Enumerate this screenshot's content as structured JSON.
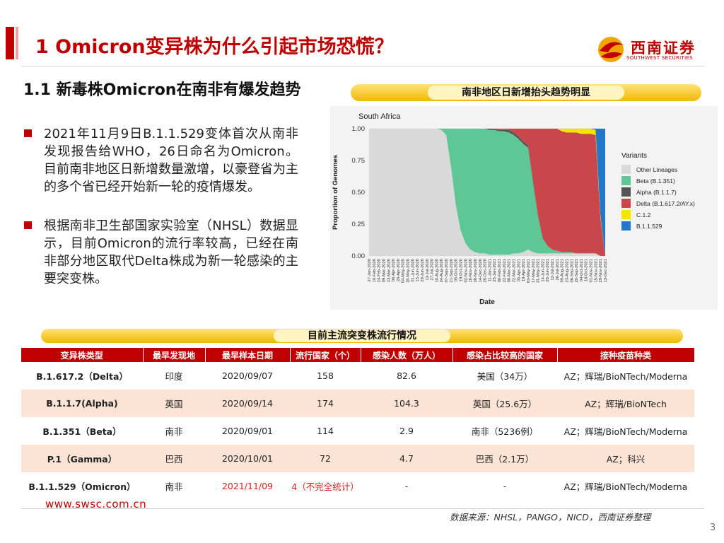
{
  "header": {
    "title": "1 Omicron变异株为什么引起市场恐慌？",
    "logo_name": "西南证券",
    "logo_sub": "SOUTHWEST SECURITIES"
  },
  "section": {
    "title": "1.1 新毒株Omicron在南非有爆发趋势",
    "bullets": [
      "2021年11月9日B.1.1.529变体首次从南非发现报告给WHO，26日命名为Omicron。目前南非地区日新增数量激增，以豪登省为主的多个省已经开始新一轮的疫情爆发。",
      "根据南非卫生部国家实验室（NHSL）数据显示，目前Omicron的流行率较高，已经在南非部分地区取代Delta株成为新一轮感染的主要突变株。"
    ]
  },
  "chart_banner": "南非地区日新增抬头趋势明显",
  "table_banner": "目前主流突变株流行情况",
  "chart_data": {
    "type": "area",
    "title": "South Africa",
    "xlabel": "Date",
    "ylabel": "Proportion of Genomes",
    "ylim": [
      0,
      1
    ],
    "yticks": [
      "0.00",
      "0.25",
      "0.50",
      "0.75",
      "1.00"
    ],
    "x": [
      "27-Jan-2020",
      "10-Feb-2020",
      "24-Feb-2020",
      "09-Mar-2020",
      "23-Mar-2020",
      "06-Apr-2020",
      "20-Apr-2020",
      "04-May-2020",
      "18-May-2020",
      "01-Jun-2020",
      "15-Jun-2020",
      "29-Jun-2020",
      "13-Jul-2020",
      "27-Jul-2020",
      "10-Aug-2020",
      "24-Aug-2020",
      "07-Sep-2020",
      "21-Sep-2020",
      "05-Oct-2020",
      "19-Oct-2020",
      "02-Nov-2020",
      "16-Nov-2020",
      "30-Nov-2020",
      "14-Dec-2020",
      "28-Dec-2020",
      "11-Jan-2021",
      "25-Jan-2021",
      "08-Feb-2021",
      "22-Feb-2021",
      "08-Mar-2021",
      "22-Mar-2021",
      "05-Apr-2021",
      "19-Apr-2021",
      "03-May-2021",
      "17-May-2021",
      "31-May-2021",
      "14-Jun-2021",
      "28-Jun-2021",
      "12-Jul-2021",
      "26-Jul-2021",
      "09-Aug-2021",
      "23-Aug-2021",
      "06-Sep-2021",
      "20-Sep-2021",
      "04-Oct-2021",
      "18-Oct-2021",
      "01-Nov-2021",
      "15-Nov-2021",
      "29-Nov-2021",
      "13-Dec-2021"
    ],
    "legend_title": "Variants",
    "legend_position": "right",
    "series": [
      {
        "name": "Other Lineages",
        "color": "#d9d9d9",
        "values": [
          1,
          1,
          1,
          1,
          1,
          1,
          1,
          1,
          1,
          1,
          1,
          1,
          1,
          1,
          1,
          0.99,
          0.95,
          0.7,
          0.4,
          0.2,
          0.1,
          0.05,
          0.03,
          0.02,
          0.02,
          0.01,
          0.01,
          0.01,
          0.01,
          0.01,
          0.02,
          0.02,
          0.03,
          0.05,
          0.03,
          0.02,
          0.02,
          0.02,
          0.02,
          0.02,
          0.02,
          0.02,
          0.02,
          0.02,
          0.02,
          0.02,
          0.02,
          0.02,
          0.0,
          0.0
        ]
      },
      {
        "name": "Beta (B.1.351)",
        "color": "#5ec795",
        "values": [
          0,
          0,
          0,
          0,
          0,
          0,
          0,
          0,
          0,
          0,
          0,
          0,
          0,
          0,
          0,
          0.01,
          0.05,
          0.3,
          0.6,
          0.8,
          0.9,
          0.95,
          0.97,
          0.98,
          0.98,
          0.98,
          0.98,
          0.97,
          0.97,
          0.96,
          0.93,
          0.9,
          0.85,
          0.8,
          0.55,
          0.3,
          0.12,
          0.06,
          0.03,
          0.02,
          0.01,
          0.01,
          0.01,
          0,
          0,
          0,
          0,
          0,
          0,
          0
        ]
      },
      {
        "name": "Alpha (B.1.1.7)",
        "color": "#555555",
        "values": [
          0,
          0,
          0,
          0,
          0,
          0,
          0,
          0,
          0,
          0,
          0,
          0,
          0,
          0,
          0,
          0,
          0,
          0,
          0,
          0,
          0,
          0,
          0,
          0,
          0,
          0.01,
          0.01,
          0.01,
          0.01,
          0.02,
          0.02,
          0.02,
          0.02,
          0.02,
          0.02,
          0.01,
          0.01,
          0,
          0,
          0,
          0,
          0,
          0,
          0,
          0,
          0,
          0,
          0,
          0,
          0
        ]
      },
      {
        "name": "Delta (B.1.617.2/AY.x)",
        "color": "#c9474a",
        "values": [
          0,
          0,
          0,
          0,
          0,
          0,
          0,
          0,
          0,
          0,
          0,
          0,
          0,
          0,
          0,
          0,
          0,
          0,
          0,
          0,
          0,
          0,
          0,
          0,
          0,
          0,
          0,
          0.01,
          0.01,
          0.01,
          0.03,
          0.06,
          0.1,
          0.13,
          0.4,
          0.67,
          0.85,
          0.92,
          0.95,
          0.96,
          0.95,
          0.94,
          0.94,
          0.95,
          0.94,
          0.94,
          0.94,
          0.93,
          0.3,
          0.0
        ]
      },
      {
        "name": "C.1.2",
        "color": "#f2e600",
        "values": [
          0,
          0,
          0,
          0,
          0,
          0,
          0,
          0,
          0,
          0,
          0,
          0,
          0,
          0,
          0,
          0,
          0,
          0,
          0,
          0,
          0,
          0,
          0,
          0,
          0,
          0,
          0,
          0,
          0,
          0,
          0,
          0,
          0,
          0,
          0,
          0,
          0,
          0,
          0,
          0,
          0.02,
          0.03,
          0.03,
          0.03,
          0.04,
          0.04,
          0.04,
          0.04,
          0.02,
          0.0
        ]
      },
      {
        "name": "B.1.1.529",
        "color": "#2277c9",
        "values": [
          0,
          0,
          0,
          0,
          0,
          0,
          0,
          0,
          0,
          0,
          0,
          0,
          0,
          0,
          0,
          0,
          0,
          0,
          0,
          0,
          0,
          0,
          0,
          0,
          0,
          0,
          0,
          0,
          0,
          0,
          0,
          0,
          0,
          0,
          0,
          0,
          0,
          0,
          0,
          0,
          0,
          0,
          0,
          0,
          0,
          0,
          0,
          0.01,
          0.68,
          1.0
        ]
      }
    ]
  },
  "table": {
    "headers": [
      "变异株类型",
      "最早发现地",
      "最早样本日期",
      "流行国家（个）",
      "感染人数（万人）",
      "感染占比较高的国家",
      "接种疫苗种类"
    ],
    "rows": [
      [
        "B.1.617.2（Delta）",
        "印度",
        "2020/09/07",
        "158",
        "82.6",
        "美国（34万）",
        "AZ；辉瑞/BioNTech/Moderna"
      ],
      [
        "B.1.1.7(Alpha)",
        "英国",
        "2020/09/14",
        "174",
        "104.3",
        "英国（25.6万）",
        "AZ；辉瑞/BioNTech"
      ],
      [
        "B.1.351（Beta）",
        "南非",
        "2020/09/01",
        "114",
        "2.9",
        "南非（5236例）",
        "AZ；辉瑞/BioNTech/Moderna"
      ],
      [
        "P.1（Gamma）",
        "巴西",
        "2020/10/01",
        "72",
        "4.7",
        "巴西（2.1万）",
        "AZ；科兴"
      ],
      [
        "B.1.1.529（Omicron）",
        "南非",
        "2021/11/09",
        "4（不完全统计）",
        "-",
        "-",
        "AZ；辉瑞/BioNTech/Moderna"
      ]
    ],
    "highlight_color": "#e02020"
  },
  "footer": {
    "url": "www.swsc.com.cn",
    "source": "数据来源：NHSL，PANGO，NICD，西南证券整理",
    "page": "3"
  },
  "colors": {
    "brand": "#c00000",
    "banner": "#f5c518",
    "row_alt": "#fbe4d6"
  }
}
